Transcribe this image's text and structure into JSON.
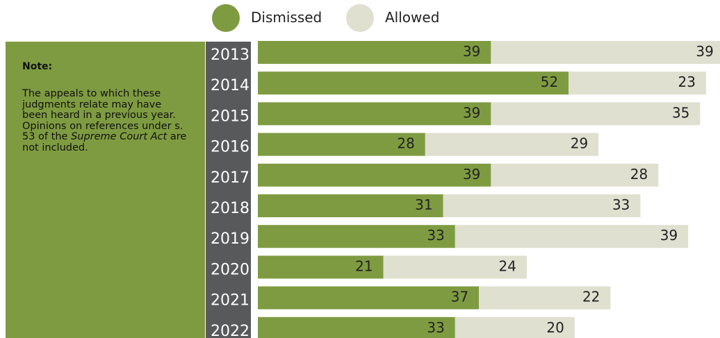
{
  "legend": [
    {
      "label": "Dismissed",
      "color": "#7f9b41"
    },
    {
      "label": "Allowed",
      "color": "#dfe0d0"
    }
  ],
  "note": {
    "title": "Note:",
    "text_before": "The appeals to which these judgments relate may have been heard in a previous year. Opinions on references under s. 53 of the ",
    "text_italic": "Supreme Court Act",
    "text_after": " are not included."
  },
  "chart_data": {
    "type": "bar",
    "orientation": "horizontal",
    "stacked": true,
    "categories": [
      "2013",
      "2014",
      "2015",
      "2016",
      "2017",
      "2018",
      "2019",
      "2020",
      "2021",
      "2022"
    ],
    "series": [
      {
        "name": "Dismissed",
        "color": "#7f9b41",
        "values": [
          39,
          52,
          39,
          28,
          39,
          31,
          33,
          21,
          37,
          33
        ]
      },
      {
        "name": "Allowed",
        "color": "#dfe0d0",
        "values": [
          39,
          23,
          35,
          29,
          28,
          33,
          39,
          24,
          22,
          20
        ]
      }
    ],
    "xlim": [
      0,
      78
    ],
    "grid": false,
    "legend_position": "top"
  }
}
